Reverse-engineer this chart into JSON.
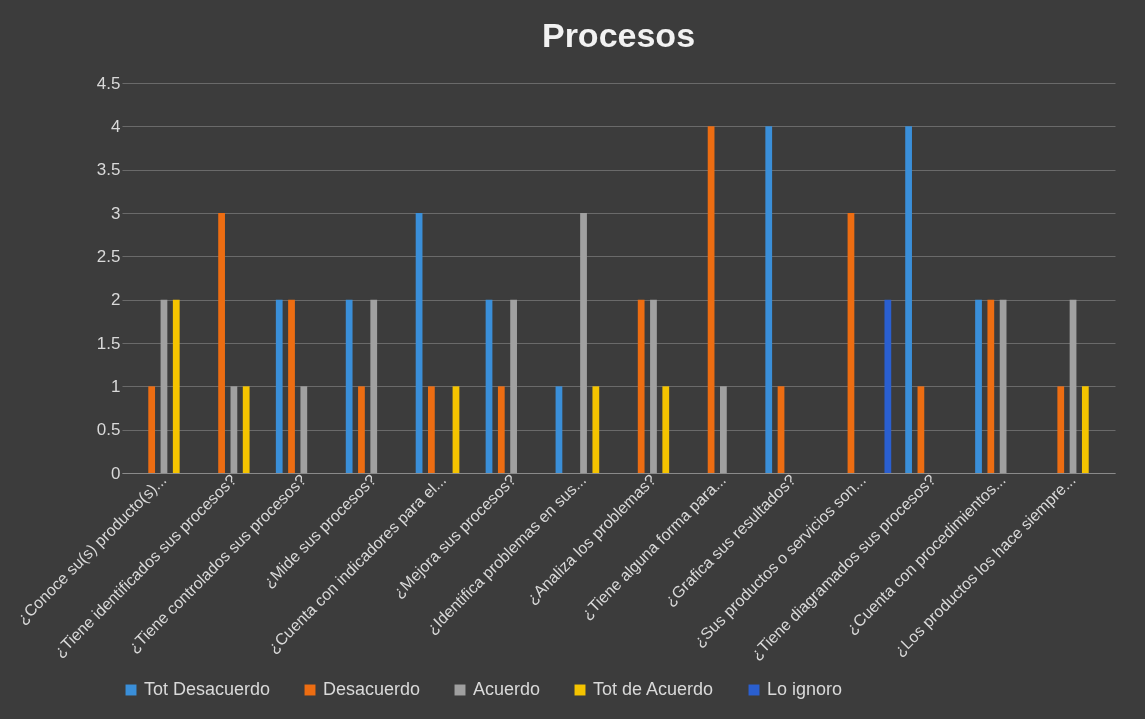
{
  "chart_data": {
    "type": "bar",
    "title": "Procesos",
    "categories": [
      "¿Conoce su(s) producto(s)...",
      "¿Tiene identificados sus procesos?",
      "¿Tiene controlados sus procesos?",
      "¿Mide sus procesos?",
      "¿Cuenta con indicadores para el...",
      "¿Mejora sus procesos?",
      "¿Identifica problemas en sus...",
      "¿Analiza los problemas?",
      "¿Tiene alguna forma para...",
      "¿Grafica sus resultados?",
      "¿Sus productos o servicios son...",
      "¿Tiene diagramados sus procesos?",
      "¿Cuenta con procedimientos...",
      "¿Los productos los hace siempre..."
    ],
    "series": [
      {
        "name": "Tot Desacuerdo",
        "color": "#3a8fd9",
        "values": [
          null,
          null,
          2,
          2,
          3,
          2,
          1,
          null,
          null,
          4,
          null,
          4,
          2,
          null
        ]
      },
      {
        "name": "Desacuerdo",
        "color": "#ed6d12",
        "values": [
          1,
          3,
          2,
          1,
          1,
          1,
          null,
          2,
          4,
          1,
          3,
          1,
          2,
          1
        ]
      },
      {
        "name": "Acuerdo",
        "color": "#a0a0a0",
        "values": [
          2,
          1,
          1,
          2,
          null,
          2,
          3,
          2,
          1,
          null,
          null,
          null,
          2,
          2
        ]
      },
      {
        "name": "Tot de Acuerdo",
        "color": "#f5c400",
        "values": [
          2,
          1,
          null,
          null,
          1,
          null,
          1,
          1,
          null,
          null,
          null,
          null,
          null,
          1
        ]
      },
      {
        "name": "Lo ignoro",
        "color": "#2a5fd0",
        "values": [
          null,
          null,
          null,
          null,
          null,
          null,
          null,
          null,
          null,
          null,
          2,
          null,
          null,
          null
        ]
      }
    ],
    "ylim": [
      0,
      4.5
    ],
    "yticks": [
      0,
      0.5,
      1,
      1.5,
      2,
      2.5,
      3,
      3.5,
      4,
      4.5
    ],
    "grid": "y",
    "legend": "bottom"
  }
}
